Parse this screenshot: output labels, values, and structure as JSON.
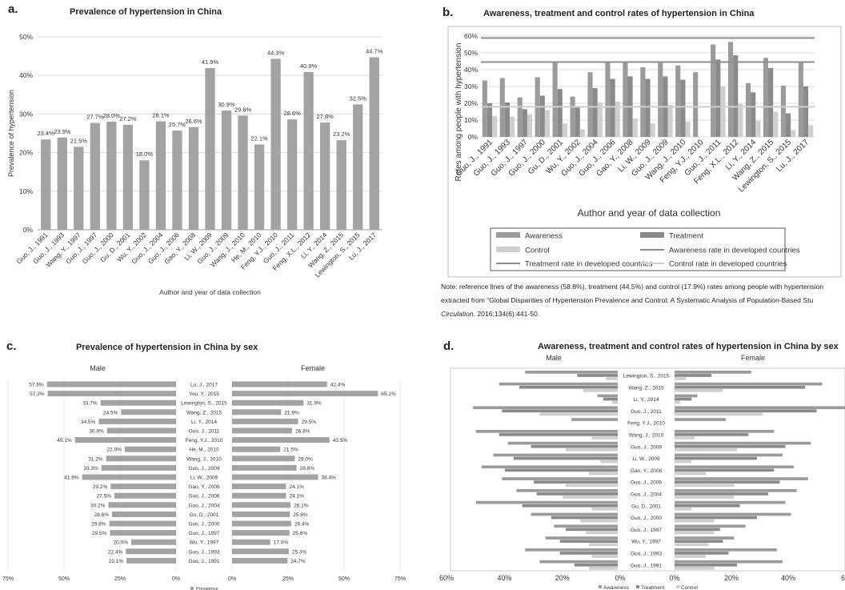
{
  "panels": {
    "a": {
      "letter": "a.",
      "title": "Prevalence of hypertension in China"
    },
    "b": {
      "letter": "b.",
      "title": "Awareness, treatment and control rates of hypertension in China"
    },
    "c": {
      "letter": "c.",
      "title": "Prevalence of hypertension in China by sex"
    },
    "d": {
      "letter": "d.",
      "title": "Awareness, treatment and control rates of hypertension in China by sex"
    }
  },
  "note": {
    "line1": "Note: reference lines of the awareness (58.8%), treatment (44.5%) and control (17.9%) rates among people with hypertension",
    "line2": "extracted from “Global Disparities of Hypertension Prevalence and Control: A Systematic Analysis of Population-Based Stu",
    "line3_italic": "Circulation",
    "line3_rest": ". 2016;134(6):441-50."
  },
  "colors": {
    "awareness": "#9b9b9b",
    "treatment": "#8a8a8a",
    "control": "#cfcfcf",
    "bar": "#a3a3a3",
    "refline": "#8c8c8c",
    "grid": "#d9d9d9"
  },
  "chart_data": [
    {
      "type": "bar",
      "title": "Prevalence of hypertension in China",
      "xlabel": "Author and year of data collection",
      "ylabel": "Prevalence of hypertension",
      "ylim": [
        0,
        50
      ],
      "yticks": [
        "0%",
        "10%",
        "20%",
        "30%",
        "40%",
        "50%"
      ],
      "categories": [
        "Guo, J., 1991",
        "Guo, J., 1993",
        "Wang, Y., 1997",
        "Guo, J., 1997",
        "Guo, J., 2000",
        "Gu, D., 2001",
        "Wu, Y., 2002",
        "Guo, J., 2004",
        "Guo, J., 2006",
        "Gao, Y., 2008",
        "Li, W., 2009",
        "Guo, J., 2009",
        "Wang, J., 2010",
        "He, M., 2010",
        "Feng, Y.J., 2010",
        "Guo, J., 2011",
        "Feng, X.L., 2012",
        "Li, Y., 2014",
        "Wang, Z., 2015",
        "Lewington, S., 2015",
        "Lu, J., 2017"
      ],
      "values": [
        23.4,
        23.9,
        21.5,
        27.7,
        28.0,
        27.2,
        18.0,
        28.1,
        25.7,
        26.6,
        41.9,
        30.9,
        29.6,
        22.1,
        44.3,
        28.6,
        40.9,
        27.8,
        23.2,
        32.5,
        44.7
      ],
      "labels": [
        "23.4%",
        "23.9%",
        "21.5%",
        "27.7%",
        "28.0%",
        "27.2%",
        "18.0%",
        "28.1%",
        "25.7%",
        "26.6%",
        "41.9%",
        "30.9%",
        "29.6%",
        "22.1%",
        "44.3%",
        "28.6%",
        "40.9%",
        "27.8%",
        "23.2%",
        "32.5%",
        "44.7%"
      ],
      "grid": true
    },
    {
      "type": "bar",
      "title": "Awareness, treatment and control rates of hypertension in China",
      "xlabel": "Author and year of data collection",
      "ylabel": "Rates among people with hypertension",
      "ylim": [
        0,
        60
      ],
      "yticks": [
        "0%",
        "10%",
        "20%",
        "30%",
        "40%",
        "50%",
        "60%"
      ],
      "categories": [
        "Guo, J., 1991",
        "Guo, J., 1993",
        "Guo, J., 1997",
        "Guo, J., 2000",
        "Gu, D., 2001",
        "Wu, Y., 2002",
        "Guo, J., 2004",
        "Guo, J., 2006",
        "Gao, Y., 2008",
        "Li, W., 2009",
        "Guo, J., 2009",
        "Wang, J., 2010",
        "Feng, Y.J., 2010",
        "Guo, J., 2011",
        "Feng, X.L., 2012",
        "Li, Y., 2014",
        "Wang, Z., 2015",
        "Lewington, S., 2015",
        "Lu, J., 2017"
      ],
      "series": [
        {
          "name": "Awareness",
          "values": [
            33.6,
            35.0,
            23.5,
            35.5,
            44.5,
            24.0,
            38.5,
            44.5,
            44.5,
            41.5,
            44.0,
            42.5,
            38.5,
            55.0,
            56.5,
            32.0,
            47.0,
            30.5,
            44.5
          ]
        },
        {
          "name": "Treatment",
          "values": [
            20.0,
            20.5,
            16.5,
            24.5,
            28.5,
            17.5,
            29.0,
            34.5,
            36.0,
            34.5,
            36.0,
            34.0,
            0,
            46.0,
            48.5,
            26.5,
            41.0,
            14.0,
            30.0
          ]
        },
        {
          "name": "Control",
          "values": [
            12.5,
            12.0,
            13.5,
            16.0,
            8.0,
            4.5,
            20.5,
            21.0,
            11.0,
            8.0,
            19.0,
            9.0,
            0,
            30.0,
            19.5,
            9.5,
            15.0,
            4.0,
            7.0
          ]
        }
      ],
      "reference_lines": [
        {
          "name": "Awareness rate in developed countries",
          "value": 58.8
        },
        {
          "name": "Treatment rate in developed countries",
          "value": 44.5
        },
        {
          "name": "Control rate in developed countries",
          "value": 17.9
        }
      ],
      "legend": [
        "Awareness",
        "Treatment",
        "Control",
        "Awareness rate in developed countries",
        "Treatment rate in developed countries",
        "Control rate in developed countries"
      ],
      "legend_position": "bottom"
    },
    {
      "type": "bar",
      "title": "Prevalence of hypertension in China by sex",
      "left_label": "Male",
      "right_label": "Female",
      "legend": [
        "Prevalence"
      ],
      "xlim": [
        0,
        75
      ],
      "xticks_left": [
        "75%",
        "50%",
        "25%",
        "0%"
      ],
      "xticks_right": [
        "0%",
        "25%",
        "50%",
        "75%"
      ],
      "categories": [
        "Lu, J., 2017",
        "You, Y., 2015",
        "Lewington, S., 2015",
        "Wang, Z., 2015",
        "Li, Y., 2014",
        "Guo, J., 2011",
        "Feng, Y.J., 2010",
        "He, M., 2010",
        "Wang, J., 2010",
        "Guo, J., 2009",
        "Li, W., 2009",
        "Gao, Y., 2008",
        "Guo, J., 2006",
        "Guo, J., 2004",
        "Gu, D., 2001",
        "Guo, J., 2000",
        "Guo, J., 1997",
        "Wu, Y., 1997",
        "Guo, J., 1993",
        "Guo, J., 1991"
      ],
      "male": [
        57.6,
        57.3,
        33.7,
        24.5,
        34.5,
        30.8,
        45.1,
        22.9,
        31.2,
        33.3,
        41.9,
        29.2,
        27.5,
        30.2,
        28.6,
        29.8,
        29.5,
        20.0,
        22.4,
        22.1
      ],
      "female": [
        42.4,
        65.1,
        31.9,
        21.9,
        29.5,
        26.8,
        43.5,
        21.5,
        28.0,
        28.8,
        38.4,
        24.1,
        24.1,
        26.1,
        25.8,
        26.4,
        25.6,
        17.0,
        25.3,
        24.7
      ],
      "male_labels": [
        "57.6%",
        "57.3%",
        "33.7%",
        "24.5%",
        "34.5%",
        "30.8%",
        "45.1%",
        "22.9%",
        "31.2%",
        "33.3%",
        "41.9%",
        "29.2%",
        "27.5%",
        "30.2%",
        "28.6%",
        "29.8%",
        "29.5%",
        "20.0%",
        "22.4%",
        "22.1%"
      ],
      "female_labels": [
        "42.4%",
        "65.1%",
        "31.9%",
        "21.9%",
        "29.5%",
        "26.8%",
        "43.5%",
        "21.5%",
        "28.0%",
        "28.8%",
        "38.4%",
        "24.1%",
        "24.1%",
        "26.1%",
        "25.8%",
        "26.4%",
        "25.6%",
        "17.0%",
        "25.3%",
        "24.7%"
      ]
    },
    {
      "type": "bar",
      "title": "Awareness, treatment and control rates of hypertension in China by sex",
      "left_label": "Male",
      "right_label": "Female",
      "xlim": [
        0,
        60
      ],
      "xticks_left": [
        "60%",
        "40%",
        "20%",
        "0%"
      ],
      "xticks_right": [
        "0%",
        "20%",
        "40%",
        "6"
      ],
      "legend": [
        "Awareness",
        "Treatment",
        "Control"
      ],
      "categories": [
        "Lewington, S., 2015",
        "Wang, Z., 2015",
        "Li, Y., 2014",
        "Guo, J., 2011",
        "Feng, Y.J., 2010",
        "Wang, J., 2010",
        "Guo, J., 2009",
        "Li, W., 2009",
        "Gao, Y., 2008",
        "Guo, J., 2006",
        "Guo, J., 2004",
        "Gu, D., 2001",
        "Guo, J., 2000",
        "Guo, J., 1997",
        "Wu, Y., 1997",
        "Guo, J., 1993",
        "Guo, J., 1991"
      ],
      "male": {
        "awareness": [
          32,
          41,
          7,
          50,
          16,
          49,
          38,
          43,
          47,
          40,
          35,
          49,
          30,
          22,
          25,
          32,
          27
        ],
        "treatment": [
          14,
          34,
          5,
          40,
          0,
          41,
          30,
          36,
          39,
          29,
          28,
          33,
          23,
          18,
          20,
          20,
          15
        ],
        "control": [
          4,
          12,
          2,
          27,
          0,
          9,
          18,
          6,
          10,
          18,
          19,
          9,
          13,
          11,
          10,
          9,
          10
        ]
      },
      "female": {
        "awareness": [
          27,
          52,
          8,
          60,
          18,
          35,
          48,
          38,
          42,
          47,
          43,
          39,
          41,
          25,
          21,
          36,
          38
        ],
        "treatment": [
          13,
          46,
          6,
          50,
          0,
          26,
          39,
          29,
          35,
          37,
          33,
          23,
          29,
          16,
          17,
          19,
          22
        ],
        "control": [
          4,
          17,
          2,
          31,
          0,
          7,
          22,
          6,
          11,
          21,
          21,
          6,
          14,
          14,
          12,
          11,
          14
        ]
      }
    }
  ]
}
